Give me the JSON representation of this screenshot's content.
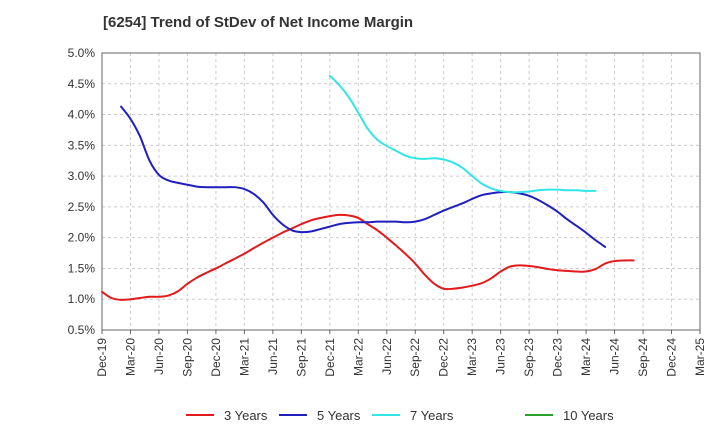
{
  "chart_data": {
    "type": "line",
    "title": "[6254]  Trend of StDev of Net Income Margin",
    "xlabel": "",
    "ylabel": "",
    "x_ticks": [
      "Dec-19",
      "Mar-20",
      "Jun-20",
      "Sep-20",
      "Dec-20",
      "Mar-21",
      "Jun-21",
      "Sep-21",
      "Dec-21",
      "Mar-22",
      "Jun-22",
      "Sep-22",
      "Dec-22",
      "Mar-23",
      "Jun-23",
      "Sep-23",
      "Dec-23",
      "Mar-24",
      "Jun-24",
      "Sep-24",
      "Dec-24",
      "Mar-25"
    ],
    "y_ticks": [
      "0.5%",
      "1.0%",
      "1.5%",
      "2.0%",
      "2.5%",
      "3.0%",
      "3.5%",
      "4.0%",
      "4.5%",
      "5.0%"
    ],
    "ylim": [
      0.5,
      5.0
    ],
    "grid": true,
    "legend_position": "bottom",
    "series": [
      {
        "name": "3 Years",
        "color": "#e31a1c",
        "points": [
          [
            0,
            1.12
          ],
          [
            0.33,
            1.02
          ],
          [
            0.67,
            0.99
          ],
          [
            1,
            1.0
          ],
          [
            1.33,
            1.02
          ],
          [
            1.67,
            1.04
          ],
          [
            2,
            1.04
          ],
          [
            2.33,
            1.06
          ],
          [
            2.67,
            1.13
          ],
          [
            3,
            1.25
          ],
          [
            3.33,
            1.35
          ],
          [
            3.67,
            1.43
          ],
          [
            4,
            1.5
          ],
          [
            4.33,
            1.58
          ],
          [
            4.67,
            1.66
          ],
          [
            5,
            1.74
          ],
          [
            5.33,
            1.83
          ],
          [
            5.67,
            1.92
          ],
          [
            6,
            2.0
          ],
          [
            6.33,
            2.08
          ],
          [
            6.67,
            2.15
          ],
          [
            7,
            2.22
          ],
          [
            7.33,
            2.28
          ],
          [
            7.67,
            2.32
          ],
          [
            8,
            2.35
          ],
          [
            8.33,
            2.37
          ],
          [
            8.67,
            2.36
          ],
          [
            9,
            2.32
          ],
          [
            9.33,
            2.22
          ],
          [
            9.67,
            2.12
          ],
          [
            10,
            2.0
          ],
          [
            10.33,
            1.87
          ],
          [
            10.67,
            1.73
          ],
          [
            11,
            1.58
          ],
          [
            11.33,
            1.4
          ],
          [
            11.67,
            1.25
          ],
          [
            12,
            1.17
          ],
          [
            12.33,
            1.17
          ],
          [
            12.67,
            1.19
          ],
          [
            13,
            1.22
          ],
          [
            13.33,
            1.26
          ],
          [
            13.67,
            1.34
          ],
          [
            14,
            1.45
          ],
          [
            14.33,
            1.53
          ],
          [
            14.67,
            1.55
          ],
          [
            15,
            1.54
          ],
          [
            15.33,
            1.52
          ],
          [
            15.67,
            1.49
          ],
          [
            16,
            1.47
          ],
          [
            16.33,
            1.46
          ],
          [
            16.67,
            1.45
          ],
          [
            17,
            1.45
          ],
          [
            17.33,
            1.49
          ],
          [
            17.67,
            1.58
          ],
          [
            18,
            1.62
          ],
          [
            18.33,
            1.63
          ],
          [
            18.67,
            1.63
          ]
        ]
      },
      {
        "name": "5 Years",
        "color": "#1f1fbf",
        "points": [
          [
            0.67,
            4.13
          ],
          [
            1,
            3.93
          ],
          [
            1.33,
            3.65
          ],
          [
            1.67,
            3.25
          ],
          [
            2,
            3.02
          ],
          [
            2.33,
            2.93
          ],
          [
            2.67,
            2.89
          ],
          [
            3,
            2.86
          ],
          [
            3.33,
            2.83
          ],
          [
            3.67,
            2.82
          ],
          [
            4,
            2.82
          ],
          [
            4.33,
            2.82
          ],
          [
            4.67,
            2.82
          ],
          [
            5,
            2.79
          ],
          [
            5.33,
            2.71
          ],
          [
            5.67,
            2.57
          ],
          [
            6,
            2.37
          ],
          [
            6.33,
            2.22
          ],
          [
            6.67,
            2.12
          ],
          [
            7,
            2.09
          ],
          [
            7.33,
            2.1
          ],
          [
            7.67,
            2.14
          ],
          [
            8,
            2.18
          ],
          [
            8.33,
            2.22
          ],
          [
            8.67,
            2.24
          ],
          [
            9,
            2.25
          ],
          [
            9.33,
            2.25
          ],
          [
            9.67,
            2.26
          ],
          [
            10,
            2.26
          ],
          [
            10.33,
            2.26
          ],
          [
            10.67,
            2.25
          ],
          [
            11,
            2.26
          ],
          [
            11.33,
            2.3
          ],
          [
            11.67,
            2.37
          ],
          [
            12,
            2.44
          ],
          [
            12.33,
            2.5
          ],
          [
            12.67,
            2.56
          ],
          [
            13,
            2.63
          ],
          [
            13.33,
            2.69
          ],
          [
            13.67,
            2.72
          ],
          [
            14,
            2.74
          ],
          [
            14.33,
            2.74
          ],
          [
            14.67,
            2.72
          ],
          [
            15,
            2.68
          ],
          [
            15.33,
            2.61
          ],
          [
            15.67,
            2.52
          ],
          [
            16,
            2.42
          ],
          [
            16.33,
            2.3
          ],
          [
            16.67,
            2.19
          ],
          [
            17,
            2.08
          ],
          [
            17.33,
            1.96
          ],
          [
            17.67,
            1.85
          ]
        ]
      },
      {
        "name": "7 Years",
        "color": "#33e6e6",
        "points": [
          [
            8,
            4.63
          ],
          [
            8.33,
            4.48
          ],
          [
            8.67,
            4.28
          ],
          [
            9,
            4.03
          ],
          [
            9.33,
            3.77
          ],
          [
            9.67,
            3.59
          ],
          [
            10,
            3.49
          ],
          [
            10.33,
            3.41
          ],
          [
            10.67,
            3.33
          ],
          [
            11,
            3.29
          ],
          [
            11.33,
            3.28
          ],
          [
            11.67,
            3.29
          ],
          [
            12,
            3.27
          ],
          [
            12.33,
            3.22
          ],
          [
            12.67,
            3.13
          ],
          [
            13,
            3.0
          ],
          [
            13.33,
            2.88
          ],
          [
            13.67,
            2.8
          ],
          [
            14,
            2.76
          ],
          [
            14.33,
            2.74
          ],
          [
            14.67,
            2.74
          ],
          [
            15,
            2.75
          ],
          [
            15.33,
            2.77
          ],
          [
            15.67,
            2.78
          ],
          [
            16,
            2.78
          ],
          [
            16.33,
            2.77
          ],
          [
            16.67,
            2.77
          ],
          [
            17,
            2.76
          ],
          [
            17.33,
            2.76
          ]
        ]
      },
      {
        "name": "10 Years",
        "color": "#2ca02c",
        "points": []
      }
    ]
  }
}
